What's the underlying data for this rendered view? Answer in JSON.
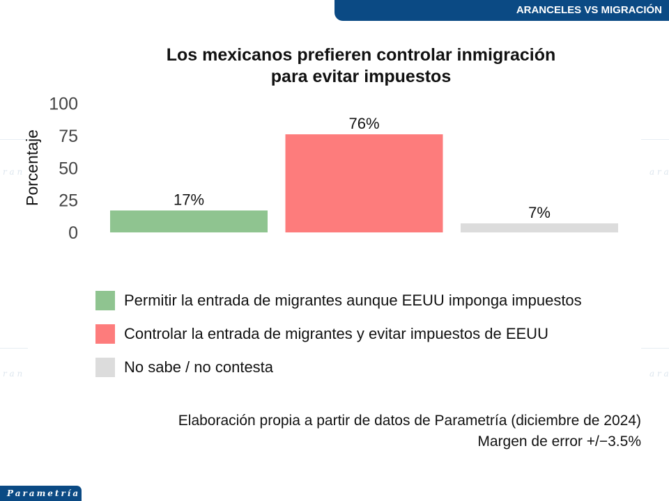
{
  "header": {
    "section_title": "ARANCELES VS MIGRACIÓN"
  },
  "logo": {
    "text": "Parametría"
  },
  "chart_data": {
    "type": "bar",
    "title": "Los mexicanos prefieren controlar inmigración para evitar impuestos",
    "title_lines": [
      "Los mexicanos prefieren controlar inmigración",
      "para evitar impuestos"
    ],
    "ylabel": "Porcentaje",
    "xlabel": "",
    "ylim": [
      0,
      100
    ],
    "yticks": [
      0,
      25,
      50,
      75,
      100
    ],
    "grid": false,
    "categories": [
      "Permitir la entrada de migrantes aunque EEUU imponga impuestos",
      "Controlar la entrada de migrantes y evitar impuestos de EEUU",
      "No sabe / no contesta"
    ],
    "values": [
      17,
      76,
      7
    ],
    "data_labels": [
      "17%",
      "76%",
      "7%"
    ],
    "colors": [
      "#8fc490",
      "#fd7c7c",
      "#dcdcdc"
    ],
    "legend_placement": "bottom"
  },
  "footer": {
    "source": "Elaboración propia a partir de datos de Parametría (diciembre de 2024)",
    "margin": "Margen de error +/−3.5%"
  }
}
